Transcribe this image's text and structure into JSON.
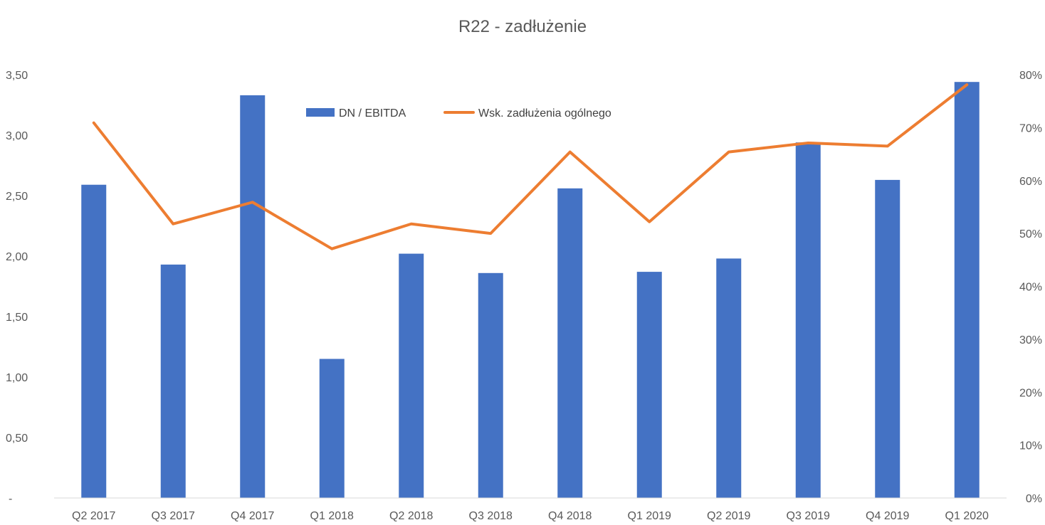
{
  "chart_data": {
    "type": "bar",
    "title": "R22 - zadłużenie",
    "categories": [
      "Q2 2017",
      "Q3 2017",
      "Q4 2017",
      "Q1 2018",
      "Q2 2018",
      "Q3 2018",
      "Q4 2018",
      "Q1 2019",
      "Q2 2019",
      "Q3 2019",
      "Q4 2019",
      "Q1 2020"
    ],
    "series": [
      {
        "name": "DN / EBITDA",
        "type": "bar",
        "axis": "left",
        "color": "#4472C4",
        "values": [
          2.59,
          1.93,
          3.33,
          1.15,
          2.02,
          1.86,
          2.56,
          1.87,
          1.98,
          2.94,
          2.63,
          3.44
        ]
      },
      {
        "name": "Wsk. zadłużenia ogólnego",
        "type": "line",
        "axis": "right",
        "color": "#ED7D31",
        "values": [
          0.709,
          0.518,
          0.559,
          0.471,
          0.518,
          0.5,
          0.654,
          0.522,
          0.654,
          0.671,
          0.665,
          0.781
        ]
      }
    ],
    "y_left": {
      "ylim": [
        0,
        3.5
      ],
      "ticks": [
        "-",
        "0,50",
        "1,00",
        "1,50",
        "2,00",
        "2,50",
        "3,00",
        "3,50"
      ]
    },
    "y_right": {
      "ylim": [
        0,
        0.8
      ],
      "ticks": [
        "0%",
        "10%",
        "20%",
        "30%",
        "40%",
        "50%",
        "60%",
        "70%",
        "80%"
      ]
    },
    "grid": false,
    "legend": "top-center"
  }
}
